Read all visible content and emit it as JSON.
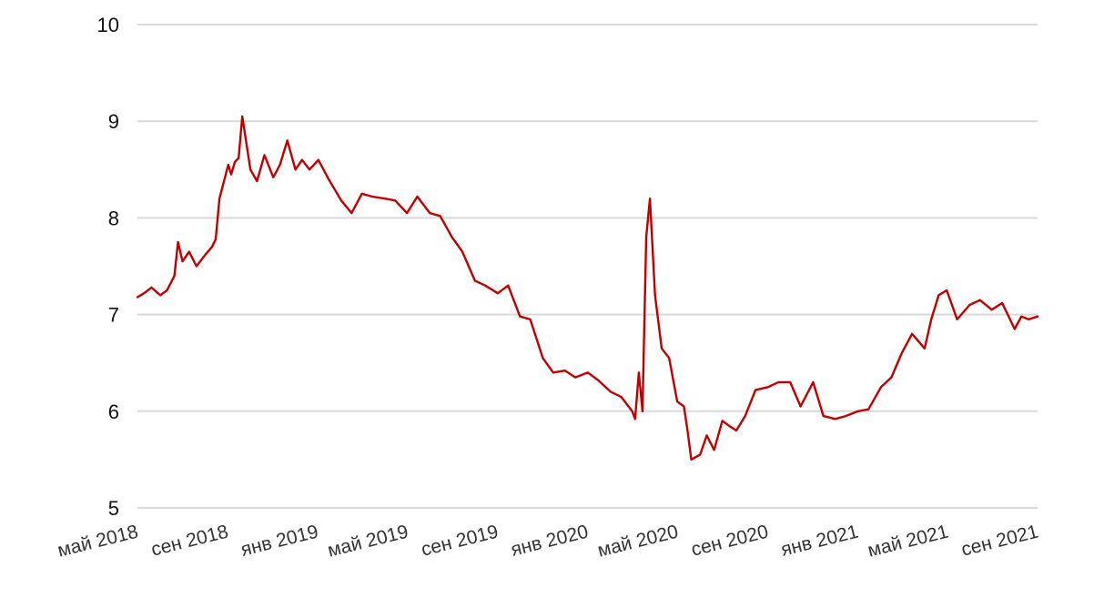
{
  "chart_data": {
    "type": "line",
    "title": "",
    "xlabel": "",
    "ylabel": "",
    "x_ticks": [
      "май 2018",
      "сен 2018",
      "янв 2019",
      "май 2019",
      "сен 2019",
      "янв 2020",
      "май 2020",
      "сен 2020",
      "янв 2021",
      "май 2021",
      "сен 2021"
    ],
    "y_ticks": [
      "5",
      "6",
      "7",
      "8",
      "9",
      "10"
    ],
    "ylim": [
      5,
      10
    ],
    "xlim": [
      "2018-05-01",
      "2021-09-01"
    ],
    "grid": true,
    "legend": "none",
    "colors": {
      "line": "#c00000",
      "grid": "#d9d9d9"
    },
    "series": [
      {
        "x": [
          "2018-05-01",
          "2018-05-10",
          "2018-05-20",
          "2018-06-01",
          "2018-06-10",
          "2018-06-20",
          "2018-06-25",
          "2018-07-01",
          "2018-07-10",
          "2018-07-20",
          "2018-08-01",
          "2018-08-10",
          "2018-08-15",
          "2018-08-20",
          "2018-09-01",
          "2018-09-05",
          "2018-09-10",
          "2018-09-15",
          "2018-09-20",
          "2018-10-01",
          "2018-10-10",
          "2018-10-20",
          "2018-11-01",
          "2018-11-10",
          "2018-11-20",
          "2018-12-01",
          "2018-12-10",
          "2018-12-20",
          "2019-01-01",
          "2019-01-15",
          "2019-02-01",
          "2019-02-15",
          "2019-03-01",
          "2019-03-15",
          "2019-04-01",
          "2019-04-15",
          "2019-05-01",
          "2019-05-15",
          "2019-06-01",
          "2019-06-15",
          "2019-07-01",
          "2019-07-15",
          "2019-08-01",
          "2019-08-15",
          "2019-09-01",
          "2019-09-15",
          "2019-10-01",
          "2019-10-15",
          "2019-11-01",
          "2019-11-15",
          "2019-12-01",
          "2019-12-15",
          "2020-01-01",
          "2020-01-15",
          "2020-02-01",
          "2020-02-15",
          "2020-03-01",
          "2020-03-05",
          "2020-03-10",
          "2020-03-15",
          "2020-03-20",
          "2020-03-25",
          "2020-04-01",
          "2020-04-10",
          "2020-04-20",
          "2020-05-01",
          "2020-05-10",
          "2020-05-15",
          "2020-05-20",
          "2020-06-01",
          "2020-06-10",
          "2020-06-20",
          "2020-07-01",
          "2020-07-10",
          "2020-07-20",
          "2020-08-01",
          "2020-08-15",
          "2020-09-01",
          "2020-09-15",
          "2020-10-01",
          "2020-10-15",
          "2020-11-01",
          "2020-11-15",
          "2020-12-01",
          "2020-12-15",
          "2021-01-01",
          "2021-01-15",
          "2021-02-01",
          "2021-02-15",
          "2021-03-01",
          "2021-03-15",
          "2021-04-01",
          "2021-04-10",
          "2021-04-20",
          "2021-05-01",
          "2021-05-15",
          "2021-06-01",
          "2021-06-15",
          "2021-07-01",
          "2021-07-15",
          "2021-08-01",
          "2021-08-10",
          "2021-08-20",
          "2021-09-01"
        ],
        "y": [
          7.18,
          7.22,
          7.28,
          7.2,
          7.25,
          7.4,
          7.75,
          7.55,
          7.65,
          7.5,
          7.62,
          7.7,
          7.78,
          8.2,
          8.55,
          8.45,
          8.58,
          8.62,
          9.05,
          8.5,
          8.38,
          8.65,
          8.42,
          8.55,
          8.8,
          8.5,
          8.6,
          8.5,
          8.6,
          8.4,
          8.18,
          8.05,
          8.25,
          8.22,
          8.2,
          8.18,
          8.05,
          8.22,
          8.05,
          8.02,
          7.8,
          7.65,
          7.35,
          7.3,
          7.22,
          7.3,
          6.98,
          6.95,
          6.55,
          6.4,
          6.42,
          6.35,
          6.4,
          6.32,
          6.2,
          6.15,
          6.0,
          5.92,
          6.4,
          6.0,
          7.8,
          8.2,
          7.2,
          6.65,
          6.55,
          6.1,
          6.05,
          5.8,
          5.5,
          5.55,
          5.75,
          5.6,
          5.9,
          5.85,
          5.8,
          5.95,
          6.22,
          6.25,
          6.3,
          6.3,
          6.05,
          6.3,
          5.95,
          5.92,
          5.95,
          6.0,
          6.02,
          6.25,
          6.35,
          6.6,
          6.8,
          6.65,
          6.95,
          7.2,
          7.25,
          6.95,
          7.1,
          7.15,
          7.05,
          7.12,
          6.85,
          6.98,
          6.95,
          6.98
        ]
      }
    ]
  }
}
